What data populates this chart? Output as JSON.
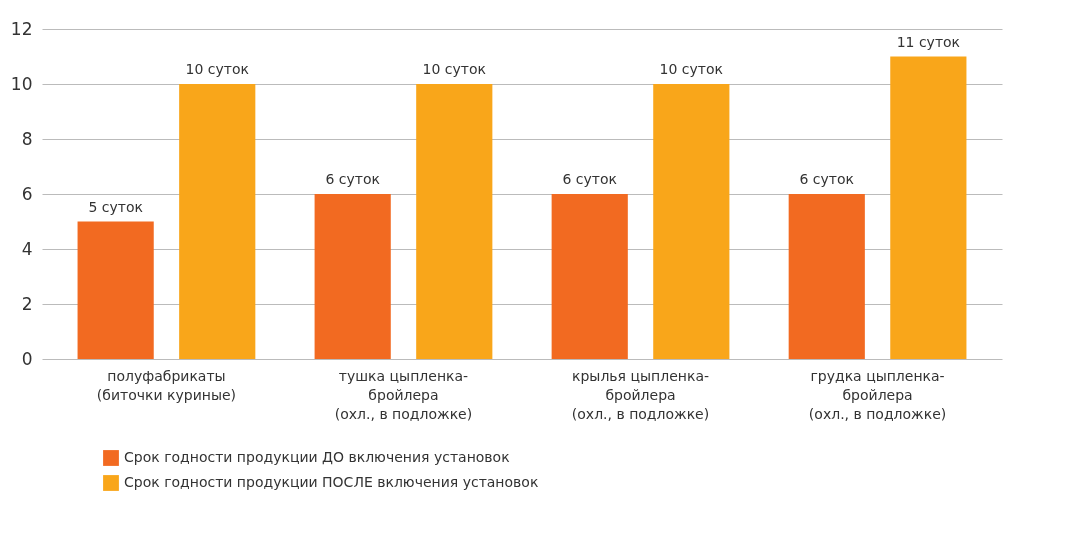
{
  "chart_data": {
    "type": "bar",
    "categories": [
      "полуфабрикаты\n(биточки куриные)",
      "тушка цыпленка-\nбройлера\n(охл., в подложке)",
      "крылья цыпленка-\nбройлера\n(охл., в подложке)",
      "грудка цыпленка-\nбройлера\n(охл., в подложке)"
    ],
    "series": [
      {
        "name": "Срок годности продукции ДО включения установок",
        "color": "#f26a21",
        "values": [
          5,
          6,
          6,
          6
        ],
        "value_labels": [
          "5 суток",
          "6 суток",
          "6 суток",
          "6 суток"
        ]
      },
      {
        "name": "Срок годности продукции ПОСЛЕ включения установок",
        "color": "#f9a61a",
        "values": [
          10,
          10,
          10,
          11
        ],
        "value_labels": [
          "10 суток",
          "10 суток",
          "10 суток",
          "11 суток"
        ]
      }
    ],
    "ylim": [
      0,
      12
    ],
    "yticks": [
      0,
      2,
      4,
      6,
      8,
      10,
      12
    ],
    "grid": "y",
    "legend": "bottom left"
  }
}
